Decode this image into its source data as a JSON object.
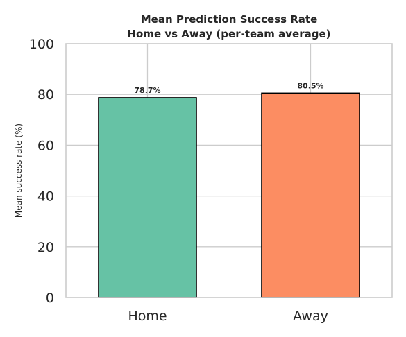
{
  "chart_data": {
    "type": "bar",
    "title": "Mean Prediction Success Rate",
    "subtitle": "Home vs Away (per-team average)",
    "xlabel": "",
    "ylabel": "Mean success rate (%)",
    "categories": [
      "Home",
      "Away"
    ],
    "values": [
      78.7,
      80.5
    ],
    "data_labels": [
      "78.7%",
      "80.5%"
    ],
    "colors": [
      "#66c2a5",
      "#fc8d62"
    ],
    "ylim": [
      0,
      100
    ],
    "yticks": [
      0,
      20,
      40,
      60,
      80,
      100
    ],
    "grid": true,
    "legend": "none"
  }
}
